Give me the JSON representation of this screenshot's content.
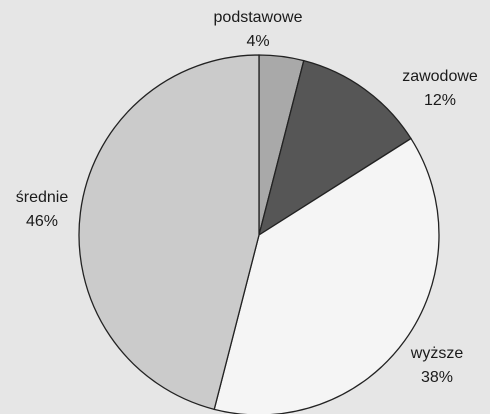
{
  "chart_data": {
    "type": "pie",
    "categories": [
      "podstawowe",
      "zawodowe",
      "wyższe",
      "średnie"
    ],
    "values": [
      4,
      12,
      38,
      46
    ],
    "value_labels": [
      "4%",
      "12%",
      "38%",
      "46%"
    ],
    "colors": [
      "#a9a9a9",
      "#565656",
      "#f5f5f5",
      "#cbcbcb"
    ]
  }
}
